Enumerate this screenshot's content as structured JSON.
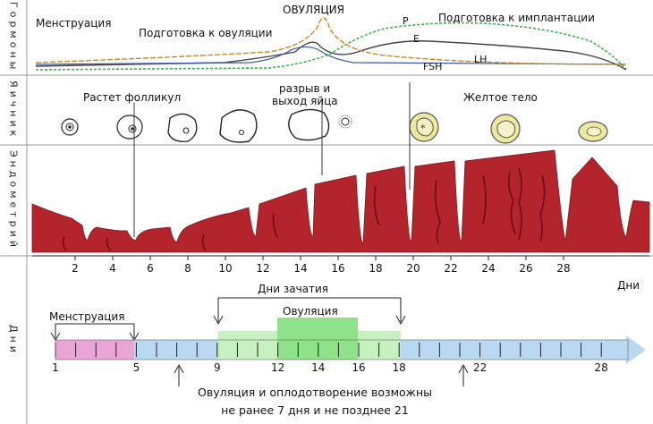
{
  "sections": {
    "hormones": "Гормоны",
    "ovary": "Яичник",
    "endometrium": "Эндометрий",
    "days": "Дни"
  },
  "hormones": {
    "menstruation": "Менструация",
    "prep_ovulation": "Подготовка к овуляции",
    "ovulation": "ОВУЛЯЦИЯ",
    "prep_implantation": "Подготовка к имплантации",
    "curve_p": "P",
    "curve_e": "E",
    "curve_fsh": "FSH",
    "curve_lh": "LH",
    "colors": {
      "p": "#3cb54a",
      "e": "#444444",
      "fsh": "#3a55a8",
      "lh": "#c98a2a"
    }
  },
  "ovary": {
    "follicle_growth": "Растет фолликул",
    "rupture_line1": "разрыв и",
    "rupture_line2": "выход яйца",
    "corpus_luteum": "Желтое тело"
  },
  "endometrium": {
    "axis_ticks": [
      "2",
      "4",
      "6",
      "8",
      "10",
      "12",
      "14",
      "16",
      "18",
      "20",
      "22",
      "24",
      "26",
      "28"
    ],
    "axis_unit": "Дни",
    "color": "#b3242c"
  },
  "days": {
    "conception_days": "Дни зачатия",
    "menstruation": "Менструация",
    "ovulation": "Овуляция",
    "labels": [
      "1",
      "5",
      "9",
      "12",
      "14",
      "16",
      "18",
      "22",
      "28"
    ],
    "note_line1": "Овуляция и оплодотворение возможны",
    "note_line2": "не ранее 7 дня и не позднее 21",
    "colors": {
      "menstruation": "#e8a5d6",
      "follicular": "#b9d9f2",
      "fertile": "#c6f0c0",
      "ovulation": "#8fe18a"
    }
  }
}
